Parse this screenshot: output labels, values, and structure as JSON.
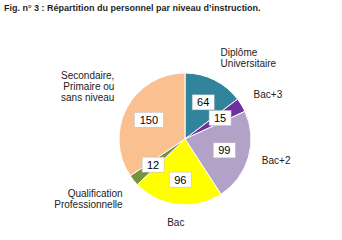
{
  "chart_data": {
    "type": "pie",
    "title": "Fig. n° 3 : Répartition du personnel par niveau d’instruction.",
    "categories": [
      "Diplôme Universitaire",
      "Bac+3",
      "Bac+2",
      "Bac",
      "Qualification Professionnelle",
      "Secondaire, Primaire ou sans niveau"
    ],
    "values": [
      64,
      15,
      99,
      96,
      12,
      150
    ],
    "colors": [
      "#31849b",
      "#7030a0",
      "#b3a2c7",
      "#ffff00",
      "#77933c",
      "#fac090"
    ],
    "data_labels": true
  }
}
